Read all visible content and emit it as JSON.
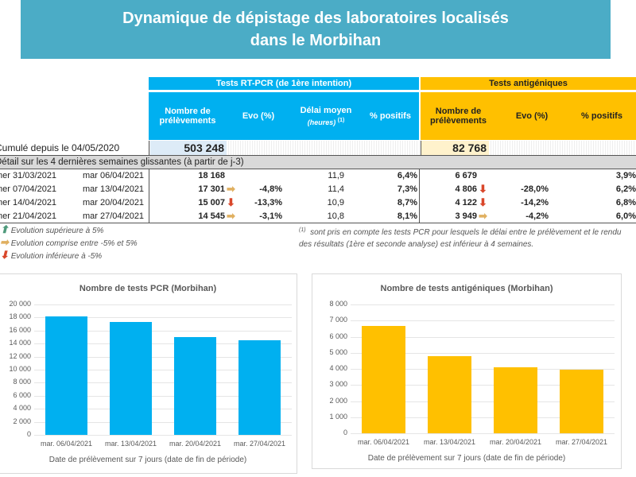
{
  "title_line1": "Dynamique de dépistage des laboratoires localisés",
  "title_line2": "dans le Morbihan",
  "pcr": {
    "group": "Tests RT-PCR (de 1ère intention)",
    "col_nombre": "Nombre de prélèvements",
    "col_evo": "Evo (%)",
    "col_delai": "Délai moyen",
    "col_delai_unit": "(heures)",
    "col_delai_note": "(1)",
    "col_pos": "% positifs",
    "cumul": "503 248"
  },
  "ag": {
    "group": "Tests antigéniques",
    "col_nombre": "Nombre de prélèvements",
    "col_evo": "Evo (%)",
    "col_pos": "%  positifs",
    "cumul": "82 768"
  },
  "cumul_label": "Cumulé depuis le 04/05/2020",
  "detail_label": "Détail sur les 4 dernières semaines glissantes (à partir de j-3)",
  "rows": [
    {
      "start": "mer 31/03/2021",
      "end": "mar 06/04/2021",
      "pcr_n": "18 168",
      "pcr_arrow": "",
      "pcr_evo": "",
      "delai": "11,9",
      "pcr_pos": "6,4%",
      "ag_n": "6 679",
      "ag_arrow": "",
      "ag_evo": "",
      "ag_pos": "3,9%"
    },
    {
      "start": "mer 07/04/2021",
      "end": "mar 13/04/2021",
      "pcr_n": "17 301",
      "pcr_arrow": "right",
      "pcr_evo": "-4,8%",
      "delai": "11,4",
      "pcr_pos": "7,3%",
      "ag_n": "4 806",
      "ag_arrow": "down",
      "ag_evo": "-28,0%",
      "ag_pos": "6,2%"
    },
    {
      "start": "mer 14/04/2021",
      "end": "mar 20/04/2021",
      "pcr_n": "15 007",
      "pcr_arrow": "down",
      "pcr_evo": "-13,3%",
      "delai": "10,9",
      "pcr_pos": "8,7%",
      "ag_n": "4 122",
      "ag_arrow": "down",
      "ag_evo": "-14,2%",
      "ag_pos": "6,8%"
    },
    {
      "start": "mer 21/04/2021",
      "end": "mar 27/04/2021",
      "pcr_n": "14 545",
      "pcr_arrow": "right",
      "pcr_evo": "-3,1%",
      "delai": "10,8",
      "pcr_pos": "8,1%",
      "ag_n": "3 949",
      "ag_arrow": "right",
      "ag_evo": "-4,2%",
      "ag_pos": "6,0%"
    }
  ],
  "legend": {
    "up": "Evolution supérieure à 5%",
    "flat": "Evolution comprise entre -5% et 5%",
    "down": "Evolution inférieure à -5%"
  },
  "footnote_mark": "(1)",
  "footnote": "sont pris en compte les tests PCR pour lesquels le délai entre le prélèvement et le rendu des résultats (1ère et seconde analyse) est inférieur à 4 semaines.",
  "colors": {
    "up": "#4e9a7b",
    "flat": "#e0b060",
    "down": "#d9472b",
    "pcr": "#00b0f0",
    "ag": "#ffc000"
  },
  "chart_data": [
    {
      "type": "bar",
      "title": "Nombre de tests PCR (Morbihan)",
      "categories": [
        "mar. 06/04/2021",
        "mar. 13/04/2021",
        "mar. 20/04/2021",
        "mar. 27/04/2021"
      ],
      "values": [
        18168,
        17301,
        15007,
        14545
      ],
      "xlabel": "Date de prélèvement sur 7 jours (date de fin de période)",
      "ylim": [
        0,
        20000
      ],
      "yticks": [
        "0",
        "2 000",
        "4 000",
        "6 000",
        "8 000",
        "10 000",
        "12 000",
        "14 000",
        "16 000",
        "18 000",
        "20 000"
      ],
      "step": 2000,
      "color": "#00b0f0"
    },
    {
      "type": "bar",
      "title": "Nombre de tests antigéniques (Morbihan)",
      "categories": [
        "mar. 06/04/2021",
        "mar. 13/04/2021",
        "mar. 20/04/2021",
        "mar. 27/04/2021"
      ],
      "values": [
        6679,
        4806,
        4122,
        3949
      ],
      "xlabel": "Date de prélèvement sur 7 jours (date de fin de période)",
      "ylim": [
        0,
        8000
      ],
      "yticks": [
        "0",
        "1 000",
        "2 000",
        "3 000",
        "4 000",
        "5 000",
        "6 000",
        "7 000",
        "8 000"
      ],
      "step": 1000,
      "color": "#ffc000"
    }
  ]
}
